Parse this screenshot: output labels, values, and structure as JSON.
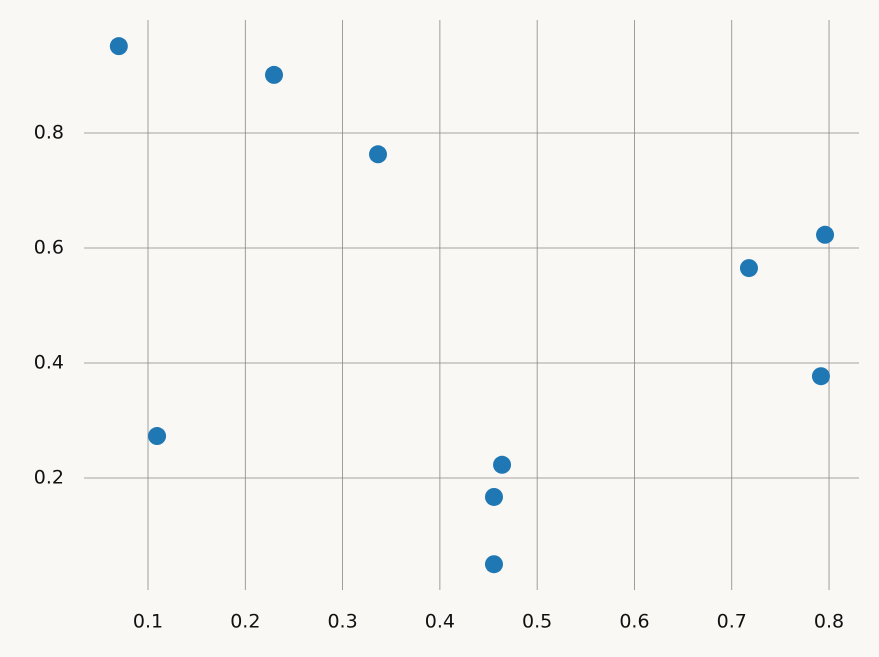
{
  "chart_data": {
    "type": "scatter",
    "series": [
      {
        "color": "#1f77b4",
        "x": [
          0.07,
          0.2295,
          0.3364,
          0.7177,
          0.7959,
          0.7917,
          0.1093,
          0.4639,
          0.4556,
          0.4556
        ],
        "values": [
          0.951,
          0.901,
          0.763,
          0.565,
          0.623,
          0.377,
          0.273,
          0.223,
          0.167,
          0.05
        ]
      }
    ],
    "xlim": [
      0.0342,
      0.8308
    ],
    "ylim": [
      0.0052,
      0.9965
    ],
    "xticks": [
      0.1,
      0.2,
      0.3,
      0.4,
      0.5,
      0.6,
      0.7,
      0.8
    ],
    "yticks": [
      0.2,
      0.4,
      0.6,
      0.8
    ],
    "grid": true
  }
}
